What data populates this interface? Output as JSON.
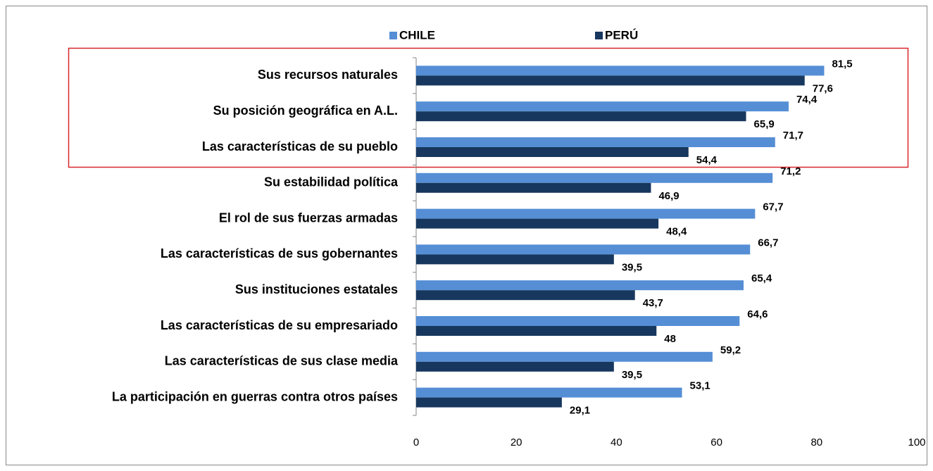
{
  "chart_data": {
    "type": "bar",
    "orientation": "horizontal",
    "categories": [
      "Sus recursos naturales",
      "Su posición geográfica en A.L.",
      "Las características de su pueblo",
      "Su estabilidad política",
      "El rol de sus fuerzas armadas",
      "Las características de sus gobernantes",
      "Sus instituciones estatales",
      "Las características de su empresariado",
      "Las características de sus clase media",
      "La participación en guerras contra otros países"
    ],
    "series": [
      {
        "name": "CHILE",
        "color": "#558ed5",
        "values": [
          81.5,
          74.4,
          71.7,
          71.2,
          67.7,
          66.7,
          65.4,
          64.6,
          59.2,
          53.1
        ],
        "value_labels": [
          "81,5",
          "74,4",
          "71,7",
          "71,2",
          "67,7",
          "66,7",
          "65,4",
          "64,6",
          "59,2",
          "53,1"
        ]
      },
      {
        "name": "PERÚ",
        "color": "#17375e",
        "values": [
          77.6,
          65.9,
          54.4,
          46.9,
          48.4,
          39.5,
          43.7,
          48,
          39.5,
          29.1
        ],
        "value_labels": [
          "77,6",
          "65,9",
          "54,4",
          "46,9",
          "48,4",
          "39,5",
          "43,7",
          "48",
          "39,5",
          "29,1"
        ]
      }
    ],
    "xlim": [
      0,
      100
    ],
    "xticks": [
      0,
      20,
      40,
      60,
      80,
      100
    ],
    "grid": false,
    "legend": "top"
  }
}
